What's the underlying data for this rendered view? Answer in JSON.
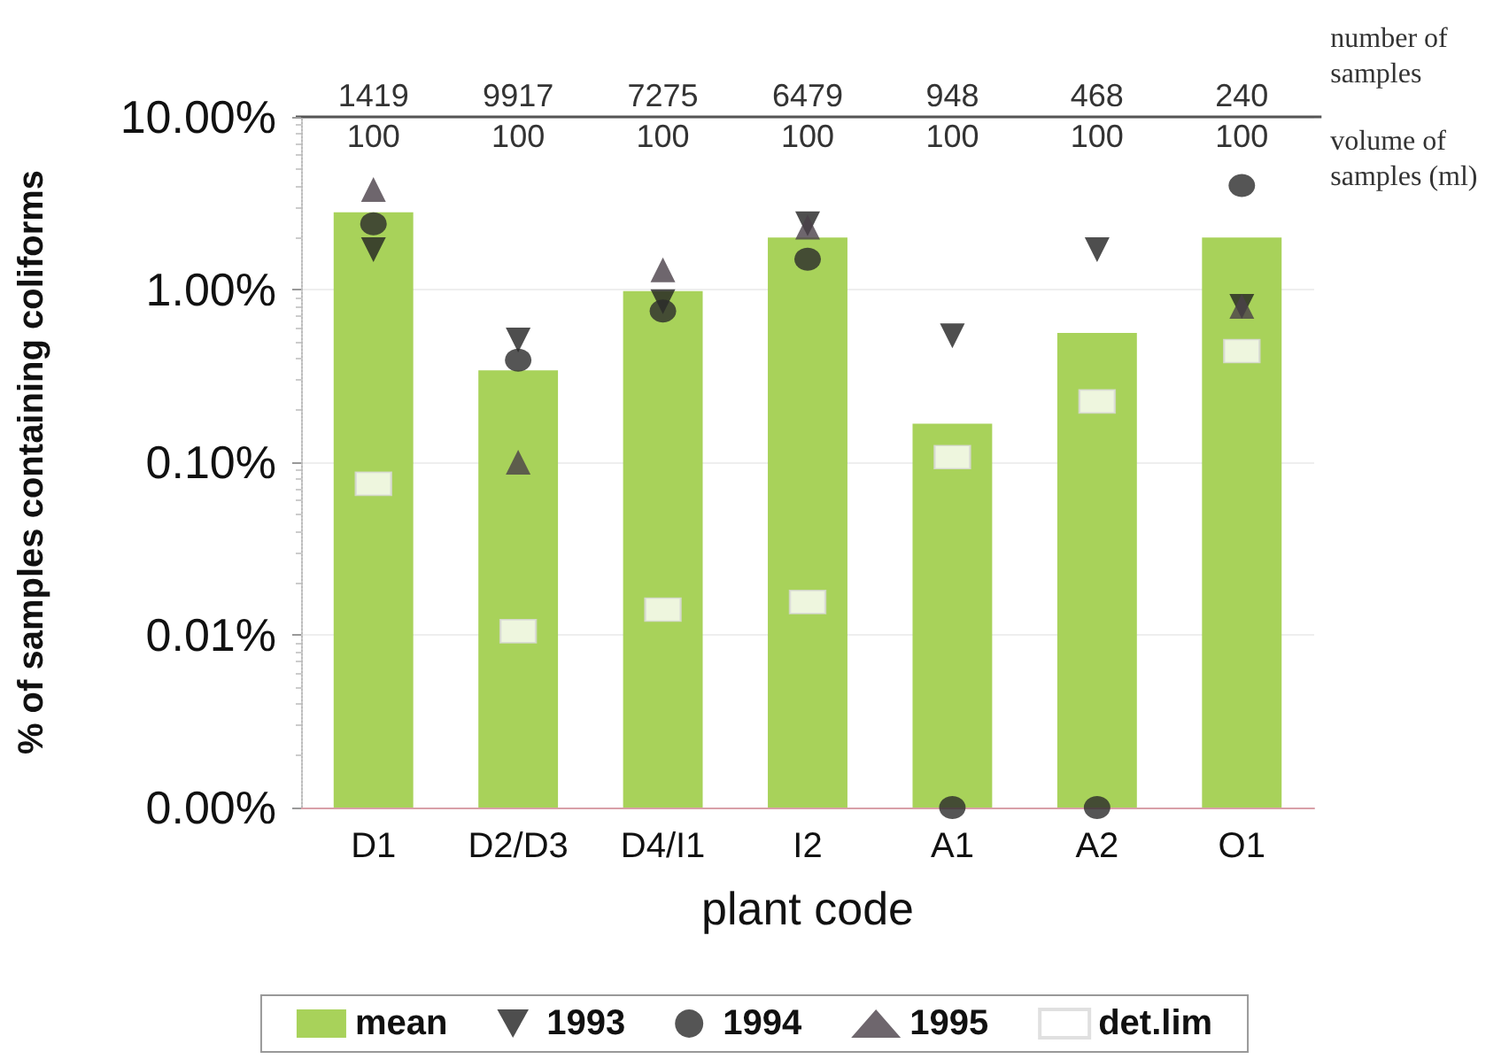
{
  "chart_data": {
    "type": "bar",
    "xlabel": "plant code",
    "ylabel": "% of samples containing coliforms",
    "categories": [
      "D1",
      "D2/D3",
      "D4/I1",
      "I2",
      "A1",
      "A2",
      "O1"
    ],
    "series": [
      {
        "name": "mean",
        "color": "#a8d25a",
        "values": [
          2.8,
          0.34,
          0.98,
          2.0,
          0.167,
          0.56,
          2.0
        ]
      },
      {
        "name": "1993",
        "type": "scatter",
        "marker": "triangle-down",
        "color": "#222222",
        "values": [
          1.7,
          0.51,
          0.85,
          2.4,
          0.54,
          1.7,
          0.8
        ]
      },
      {
        "name": "1994",
        "type": "scatter",
        "marker": "circle",
        "color": "#2a2a2a",
        "values": [
          2.4,
          0.39,
          0.75,
          1.5,
          0.001,
          0.001,
          4.0
        ]
      },
      {
        "name": "1995",
        "type": "scatter",
        "marker": "triangle",
        "color": "#4a4048",
        "values": [
          3.8,
          0.1,
          1.3,
          2.3,
          null,
          null,
          0.8
        ]
      },
      {
        "name": "det.lim",
        "type": "scatter",
        "marker": "square",
        "color": "#ffffff",
        "values": [
          0.075,
          0.0105,
          0.014,
          0.0155,
          0.107,
          0.225,
          0.44
        ]
      }
    ],
    "log": "y",
    "ylim": [
      0.001,
      10
    ],
    "yticks": [
      {
        "value": 0.001,
        "label": "0.00%"
      },
      {
        "value": 0.01,
        "label": "0.01%"
      },
      {
        "value": 0.1,
        "label": "0.10%"
      },
      {
        "value": 1,
        "label": "1.00%"
      },
      {
        "value": 10,
        "label": "10.00%"
      }
    ],
    "grid": "y",
    "legend": "bottom",
    "annotations": [
      "number of samples",
      "volume of samples (ml)",
      "1419",
      "9917",
      "7275",
      "6479",
      "948",
      "468",
      "240",
      "100",
      "100",
      "100",
      "100",
      "100",
      "100",
      "100"
    ]
  }
}
